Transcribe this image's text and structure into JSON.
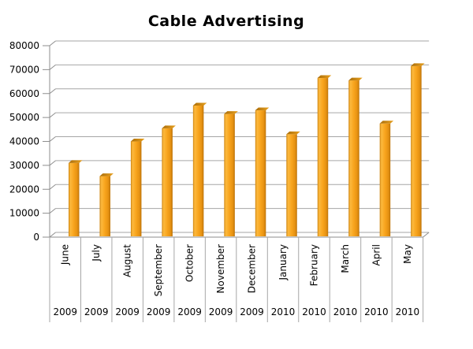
{
  "page": {
    "background": "#FFFFFF"
  },
  "chart_data": {
    "type": "bar",
    "style": "3d-column",
    "title": "Cable Advertising",
    "categories": [
      "June",
      "July",
      "August",
      "September",
      "October",
      "November",
      "December",
      "January",
      "February",
      "March",
      "April",
      "May"
    ],
    "year_labels": [
      "2009",
      "2009",
      "2009",
      "2009",
      "2009",
      "2009",
      "2009",
      "2010",
      "2010",
      "2010",
      "2010",
      "2010"
    ],
    "values": [
      30000,
      24500,
      39000,
      44500,
      54000,
      50500,
      52000,
      42000,
      65500,
      64500,
      46500,
      70500
    ],
    "xlabel": "",
    "ylabel": "",
    "ylim": [
      0,
      80000
    ],
    "ytick_step": 10000,
    "ytick_labels": [
      "0",
      "10000",
      "20000",
      "30000",
      "40000",
      "50000",
      "60000",
      "70000",
      "80000"
    ],
    "grid": true,
    "legend": "none",
    "colors": {
      "bar_edge_left": "#CE8410",
      "bar_highlight": "#FCB93E",
      "bar_main": "#F8A41D",
      "bar_mid_shadow": "#E59112",
      "bar_shadow": "#BC7207",
      "bar_cap_dark": "#A96C08",
      "bar_cap_light": "#E8A01E",
      "grid_line": "#A6A6A6",
      "axis_line": "#8E8E8E",
      "text": "#000000",
      "background": "#FFFFFF"
    }
  }
}
